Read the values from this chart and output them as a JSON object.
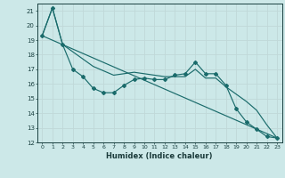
{
  "xlabel": "Humidex (Indice chaleur)",
  "background_color": "#cce8e8",
  "grid_color": "#b0d8d8",
  "line_color": "#1a6b6b",
  "xlim_min": -0.5,
  "xlim_max": 23.5,
  "ylim_min": 12,
  "ylim_max": 21.5,
  "xticks": [
    0,
    1,
    2,
    3,
    4,
    5,
    6,
    7,
    8,
    9,
    10,
    11,
    12,
    13,
    14,
    15,
    16,
    17,
    18,
    19,
    20,
    21,
    22,
    23
  ],
  "yticks": [
    12,
    13,
    14,
    15,
    16,
    17,
    18,
    19,
    20,
    21
  ],
  "series1_x": [
    0,
    1,
    2,
    3,
    4,
    5,
    6,
    7,
    8,
    9,
    10,
    11,
    12,
    13,
    14,
    15,
    16,
    17,
    18,
    19,
    20,
    21,
    22,
    23
  ],
  "series1_y": [
    19.3,
    21.2,
    18.7,
    17.0,
    16.5,
    15.7,
    15.4,
    15.4,
    15.9,
    16.3,
    16.4,
    16.3,
    16.3,
    16.6,
    16.7,
    17.5,
    16.7,
    16.7,
    15.9,
    14.3,
    13.4,
    12.9,
    12.4,
    12.3
  ],
  "series2_x": [
    0,
    1,
    2,
    3,
    4,
    5,
    6,
    7,
    8,
    9,
    10,
    11,
    12,
    13,
    14,
    15,
    16,
    17,
    18,
    19,
    20,
    21,
    22,
    23
  ],
  "series2_y": [
    19.3,
    21.2,
    18.7,
    18.2,
    17.7,
    17.2,
    16.9,
    16.6,
    16.7,
    16.8,
    16.7,
    16.6,
    16.5,
    16.5,
    16.5,
    17.0,
    16.4,
    16.4,
    15.8,
    15.3,
    14.8,
    14.2,
    13.2,
    12.3
  ],
  "series3_x": [
    0,
    23
  ],
  "series3_y": [
    19.3,
    12.3
  ]
}
